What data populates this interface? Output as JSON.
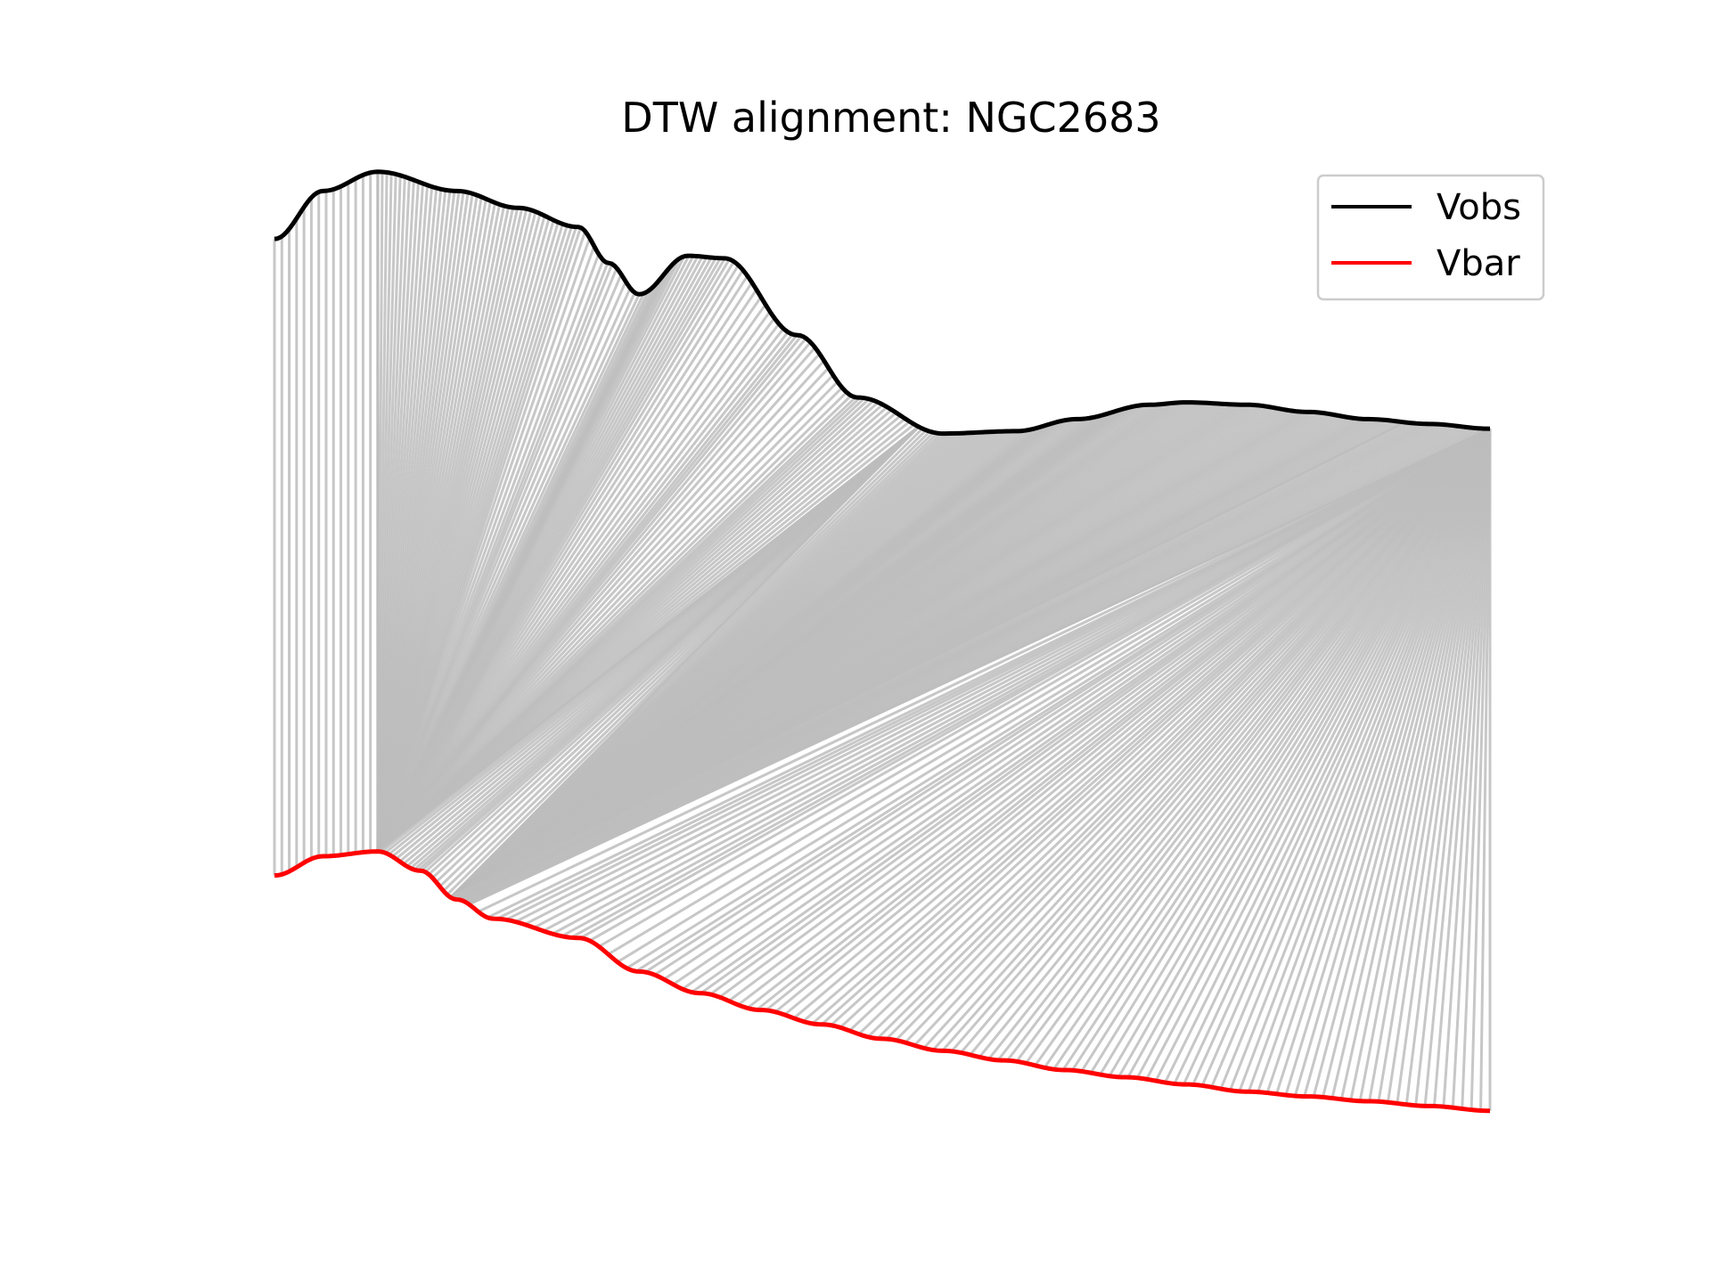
{
  "chart_data": {
    "type": "line",
    "title": "DTW alignment: NGC2683",
    "xlabel": "",
    "ylabel": "",
    "axes_visible": false,
    "grid": false,
    "legend_position": "top-right",
    "series": [
      {
        "name": "Vobs",
        "color": "#000000",
        "x": [
          0.0,
          0.04,
          0.085,
          0.15,
          0.2,
          0.25,
          0.275,
          0.3,
          0.34,
          0.37,
          0.43,
          0.48,
          0.55,
          0.61,
          0.66,
          0.72,
          0.75,
          0.8,
          0.85,
          0.9,
          0.95,
          1.0
        ],
        "y": [
          185,
          205,
          213,
          205,
          198,
          190,
          175,
          162,
          178,
          177,
          145,
          119,
          104,
          105,
          110,
          116,
          117,
          116,
          113,
          110,
          108,
          106
        ]
      },
      {
        "name": "Vbar",
        "color": "#ff0000",
        "x": [
          0.0,
          0.04,
          0.085,
          0.12,
          0.15,
          0.18,
          0.25,
          0.3,
          0.35,
          0.4,
          0.45,
          0.5,
          0.55,
          0.6,
          0.65,
          0.7,
          0.75,
          0.8,
          0.85,
          0.9,
          0.95,
          1.0
        ],
        "y": [
          -80,
          -72,
          -70,
          -78,
          -90,
          -98,
          -106,
          -120,
          -129,
          -136,
          -142,
          -148,
          -153,
          -157,
          -161,
          -164,
          -167,
          -170,
          -172,
          -174,
          -176,
          -178
        ]
      }
    ],
    "ylim": [
      -220,
      240
    ],
    "connector_color": "#bdbdbd",
    "background": "#ffffff"
  }
}
